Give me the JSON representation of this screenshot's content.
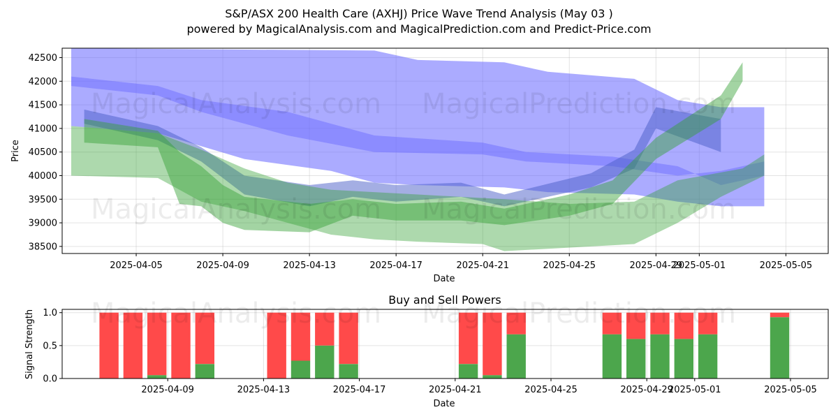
{
  "title_line1": "S&P/ASX 200 Health Care (AXHJ) Price Wave Trend Analysis (May 03 )",
  "title_line2": "powered by MagicalAnalysis.com and MagicalPrediction.com and Predict-Price.com",
  "watermarks": [
    "MagicalAnalysis.com",
    "MagicalPrediction.com"
  ],
  "chart_data": [
    {
      "type": "area",
      "title": "S&P/ASX 200 Health Care (AXHJ) Price Wave Trend Analysis (May 03 )",
      "xlabel": "Date",
      "ylabel": "Price",
      "xlim": [
        "2025-04-02",
        "2025-05-06"
      ],
      "ylim": [
        38350,
        42700
      ],
      "x_ticks": [
        "2025-04-05",
        "2025-04-09",
        "2025-04-13",
        "2025-04-17",
        "2025-04-21",
        "2025-04-25",
        "2025-04-29",
        "2025-05-01",
        "2025-05-05"
      ],
      "y_ticks": [
        38500,
        39000,
        39500,
        40000,
        40500,
        41000,
        41500,
        42000,
        42500
      ],
      "grid": true,
      "bands": [
        {
          "name": "blue-upper",
          "color": "#6666ff",
          "opacity": 0.55,
          "upper": [
            [
              0,
              42700
            ],
            [
              14,
              42650
            ],
            [
              16,
              42450
            ],
            [
              20,
              42400
            ],
            [
              22,
              42200
            ],
            [
              26,
              42050
            ],
            [
              28,
              41600
            ],
            [
              30,
              41450
            ],
            [
              32,
              41450
            ]
          ],
          "lower": [
            [
              0,
              41050
            ],
            [
              4,
              40900
            ],
            [
              8,
              40350
            ],
            [
              12,
              40100
            ],
            [
              14,
              39850
            ],
            [
              16,
              39800
            ],
            [
              20,
              39750
            ],
            [
              22,
              39650
            ],
            [
              26,
              39600
            ],
            [
              28,
              39450
            ],
            [
              30,
              39350
            ],
            [
              32,
              39350
            ]
          ]
        },
        {
          "name": "blue-lower",
          "color": "#6666ff",
          "opacity": 0.45,
          "upper": [
            [
              0,
              42100
            ],
            [
              4,
              41900
            ],
            [
              6,
              41600
            ],
            [
              10,
              41350
            ],
            [
              14,
              40850
            ],
            [
              19,
              40700
            ],
            [
              21,
              40500
            ],
            [
              25,
              40400
            ],
            [
              28,
              40200
            ],
            [
              30,
              39800
            ],
            [
              32,
              40000
            ]
          ],
          "lower": [
            [
              0,
              41900
            ],
            [
              4,
              41700
            ],
            [
              6,
              41350
            ],
            [
              10,
              40850
            ],
            [
              14,
              40500
            ],
            [
              19,
              40450
            ],
            [
              21,
              40300
            ],
            [
              25,
              40200
            ],
            [
              28,
              40000
            ],
            [
              30,
              40100
            ],
            [
              32,
              40300
            ]
          ]
        },
        {
          "name": "blue-wave",
          "color": "#4a5ec8",
          "opacity": 0.5,
          "upper": [
            [
              0.6,
              41400
            ],
            [
              4,
              41050
            ],
            [
              6,
              40600
            ],
            [
              8,
              40000
            ],
            [
              11,
              39800
            ],
            [
              13,
              39900
            ],
            [
              15,
              39800
            ],
            [
              18,
              39850
            ],
            [
              20,
              39600
            ],
            [
              24,
              40050
            ],
            [
              26,
              40550
            ],
            [
              27,
              41450
            ],
            [
              30,
              41200
            ]
          ],
          "lower": [
            [
              0.6,
              41100
            ],
            [
              4,
              40750
            ],
            [
              6,
              40300
            ],
            [
              8,
              39600
            ],
            [
              11,
              39350
            ],
            [
              13,
              39550
            ],
            [
              15,
              39450
            ],
            [
              18,
              39550
            ],
            [
              20,
              39350
            ],
            [
              24,
              39750
            ],
            [
              26,
              40150
            ],
            [
              27,
              41000
            ],
            [
              30,
              40500
            ]
          ]
        },
        {
          "name": "green-main",
          "color": "#33a033",
          "opacity": 0.4,
          "upper": [
            [
              0,
              41050
            ],
            [
              4,
              40900
            ],
            [
              6,
              40550
            ],
            [
              8,
              40150
            ],
            [
              10,
              39850
            ],
            [
              12,
              39700
            ],
            [
              16,
              39600
            ],
            [
              20,
              39500
            ],
            [
              23,
              39400
            ],
            [
              26,
              39450
            ],
            [
              28,
              39900
            ],
            [
              31,
              40150
            ],
            [
              32,
              40450
            ]
          ],
          "lower": [
            [
              0,
              40000
            ],
            [
              4,
              39950
            ],
            [
              6,
              39450
            ],
            [
              8,
              39250
            ],
            [
              10,
              39000
            ],
            [
              12,
              38750
            ],
            [
              14,
              38650
            ],
            [
              16,
              38600
            ],
            [
              19,
              38550
            ],
            [
              20,
              38400
            ],
            [
              24,
              38500
            ],
            [
              26,
              38550
            ],
            [
              28,
              39000
            ],
            [
              30,
              39550
            ],
            [
              32,
              40000
            ]
          ]
        },
        {
          "name": "green-wave",
          "color": "#33a033",
          "opacity": 0.45,
          "upper": [
            [
              0.6,
              41200
            ],
            [
              4,
              40950
            ],
            [
              5,
              40500
            ],
            [
              6,
              40200
            ],
            [
              7,
              39800
            ],
            [
              8,
              39550
            ],
            [
              11,
              39400
            ],
            [
              13,
              39500
            ],
            [
              15,
              39400
            ],
            [
              18,
              39450
            ],
            [
              20,
              39300
            ],
            [
              23,
              39600
            ],
            [
              25,
              39900
            ],
            [
              27,
              40800
            ],
            [
              30,
              41700
            ],
            [
              31,
              42400
            ]
          ],
          "lower": [
            [
              0.6,
              40700
            ],
            [
              4,
              40600
            ],
            [
              5,
              39400
            ],
            [
              6,
              39350
            ],
            [
              7,
              39000
            ],
            [
              8,
              38850
            ],
            [
              11,
              38800
            ],
            [
              13,
              39150
            ],
            [
              15,
              39050
            ],
            [
              18,
              39050
            ],
            [
              20,
              38950
            ],
            [
              23,
              39150
            ],
            [
              25,
              39400
            ],
            [
              27,
              40350
            ],
            [
              30,
              41200
            ],
            [
              31,
              42000
            ]
          ]
        }
      ]
    },
    {
      "type": "bar",
      "title": "Buy and Sell Powers",
      "xlabel": "Date",
      "ylabel": "Signal Strength",
      "xlim": [
        "2025-04-05",
        "2025-05-06"
      ],
      "ylim": [
        0,
        1.05
      ],
      "x_ticks": [
        "2025-04-09",
        "2025-04-13",
        "2025-04-17",
        "2025-04-21",
        "2025-04-25",
        "2025-04-29",
        "2025-05-01",
        "2025-05-05"
      ],
      "y_ticks": [
        0.0,
        0.5,
        1.0
      ],
      "grid": true,
      "colors": {
        "buy": "#4ca64c",
        "sell": "#ff4a4a"
      },
      "series": [
        {
          "name": "Buy",
          "color": "#4ca64c"
        },
        {
          "name": "Sell",
          "color": "#ff4a4a"
        }
      ],
      "bars": [
        {
          "date": "2025-04-06",
          "buy": 0.0
        },
        {
          "date": "2025-04-07",
          "buy": 0.0
        },
        {
          "date": "2025-04-08",
          "buy": 0.05
        },
        {
          "date": "2025-04-09",
          "buy": 0.0
        },
        {
          "date": "2025-04-10",
          "buy": 0.22
        },
        {
          "date": "2025-04-13",
          "buy": 0.0
        },
        {
          "date": "2025-04-14",
          "buy": 0.27
        },
        {
          "date": "2025-04-15",
          "buy": 0.5
        },
        {
          "date": "2025-04-16",
          "buy": 0.22
        },
        {
          "date": "2025-04-21",
          "buy": 0.22
        },
        {
          "date": "2025-04-22",
          "buy": 0.05
        },
        {
          "date": "2025-04-23",
          "buy": 0.67
        },
        {
          "date": "2025-04-27",
          "buy": 0.67
        },
        {
          "date": "2025-04-28",
          "buy": 0.6
        },
        {
          "date": "2025-04-29",
          "buy": 0.67
        },
        {
          "date": "2025-04-30",
          "buy": 0.6
        },
        {
          "date": "2025-05-01",
          "buy": 0.67
        },
        {
          "date": "2025-05-04",
          "buy": 0.93
        }
      ]
    }
  ]
}
